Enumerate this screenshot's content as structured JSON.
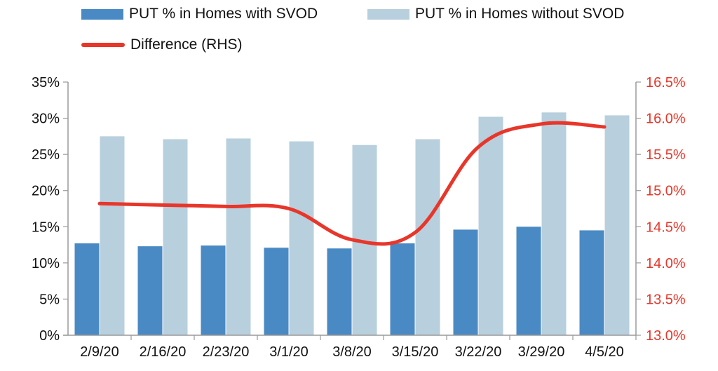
{
  "legend": {
    "with_svod": "PUT % in Homes with SVOD",
    "without_svod": "PUT % in Homes without SVOD",
    "difference": "Difference (RHS)"
  },
  "colors": {
    "with_svod": "#4a8ac4",
    "without_svod": "#b8cfdd",
    "difference": "#e8362a",
    "axis": "#9a9a9a"
  },
  "chart_data": {
    "type": "bar",
    "categories": [
      "2/9/20",
      "2/16/20",
      "2/23/20",
      "3/1/20",
      "3/8/20",
      "3/15/20",
      "3/22/20",
      "3/29/20",
      "4/5/20"
    ],
    "series": [
      {
        "name": "PUT % in Homes with SVOD",
        "type": "bar",
        "axis": "left",
        "values": [
          12.7,
          12.3,
          12.4,
          12.1,
          12.0,
          12.7,
          14.6,
          15.0,
          14.5
        ]
      },
      {
        "name": "PUT % in Homes without SVOD",
        "type": "bar",
        "axis": "left",
        "values": [
          27.5,
          27.1,
          27.2,
          26.8,
          26.3,
          27.1,
          30.2,
          30.8,
          30.4
        ]
      },
      {
        "name": "Difference (RHS)",
        "type": "line",
        "axis": "right",
        "values": [
          14.82,
          14.8,
          14.78,
          14.75,
          14.32,
          14.42,
          15.6,
          15.92,
          15.88
        ]
      }
    ],
    "ylim_left": [
      0,
      35
    ],
    "yticks_left": [
      "0%",
      "5%",
      "10%",
      "15%",
      "20%",
      "25%",
      "30%",
      "35%"
    ],
    "ylim_right": [
      13.0,
      16.5
    ],
    "yticks_right": [
      "13.0%",
      "13.5%",
      "14.0%",
      "14.5%",
      "15.0%",
      "15.5%",
      "16.0%",
      "16.5%"
    ],
    "grid": false,
    "legend_position": "top"
  }
}
